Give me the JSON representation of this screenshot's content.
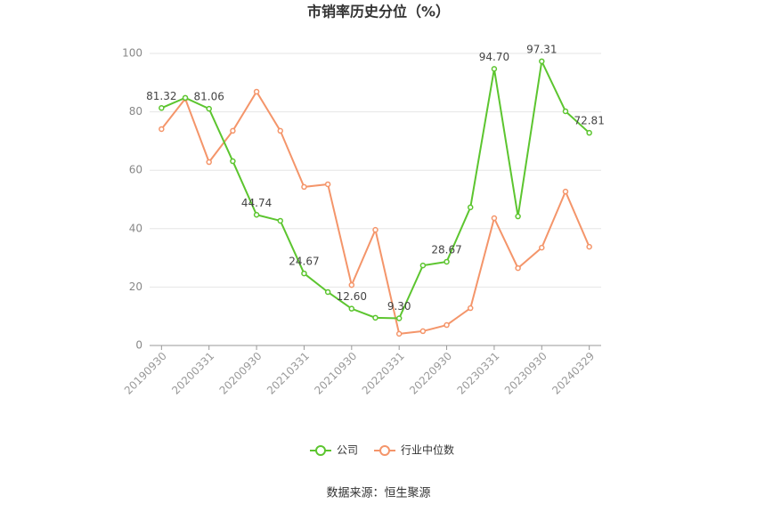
{
  "chart_data": {
    "type": "line",
    "title": "市销率历史分位（%）",
    "source": "数据来源：恒生聚源",
    "categories": [
      "20190930",
      null,
      "20200331",
      null,
      "20200930",
      null,
      "20210331",
      null,
      "20210930",
      null,
      "20220331",
      null,
      "20220930",
      null,
      "20230331",
      null,
      "20230930",
      null,
      "20240329"
    ],
    "series": [
      {
        "name": "公司",
        "color": "#5cc52f",
        "values": [
          81.32,
          84.8,
          81.06,
          63.1,
          44.74,
          42.7,
          24.67,
          18.3,
          12.6,
          9.5,
          9.3,
          27.4,
          28.67,
          47.3,
          94.7,
          44.2,
          97.31,
          80.2,
          72.81
        ],
        "value_labels": [
          "81.32",
          null,
          "81.06",
          null,
          "44.74",
          null,
          "24.67",
          null,
          "12.60",
          null,
          "9.30",
          null,
          "28.67",
          null,
          "94.70",
          null,
          "97.31",
          null,
          "72.81"
        ]
      },
      {
        "name": "行业中位数",
        "color": "#f4956a",
        "values": [
          74.1,
          84.5,
          62.8,
          73.5,
          86.9,
          73.5,
          54.3,
          55.2,
          20.7,
          39.6,
          4.0,
          4.9,
          7.0,
          12.8,
          43.6,
          26.5,
          33.5,
          52.7,
          33.8
        ]
      }
    ],
    "ylim": [
      0,
      100
    ],
    "yticks": [
      0,
      20,
      40,
      60,
      80,
      100
    ],
    "grid": true,
    "legend": "bottom"
  }
}
